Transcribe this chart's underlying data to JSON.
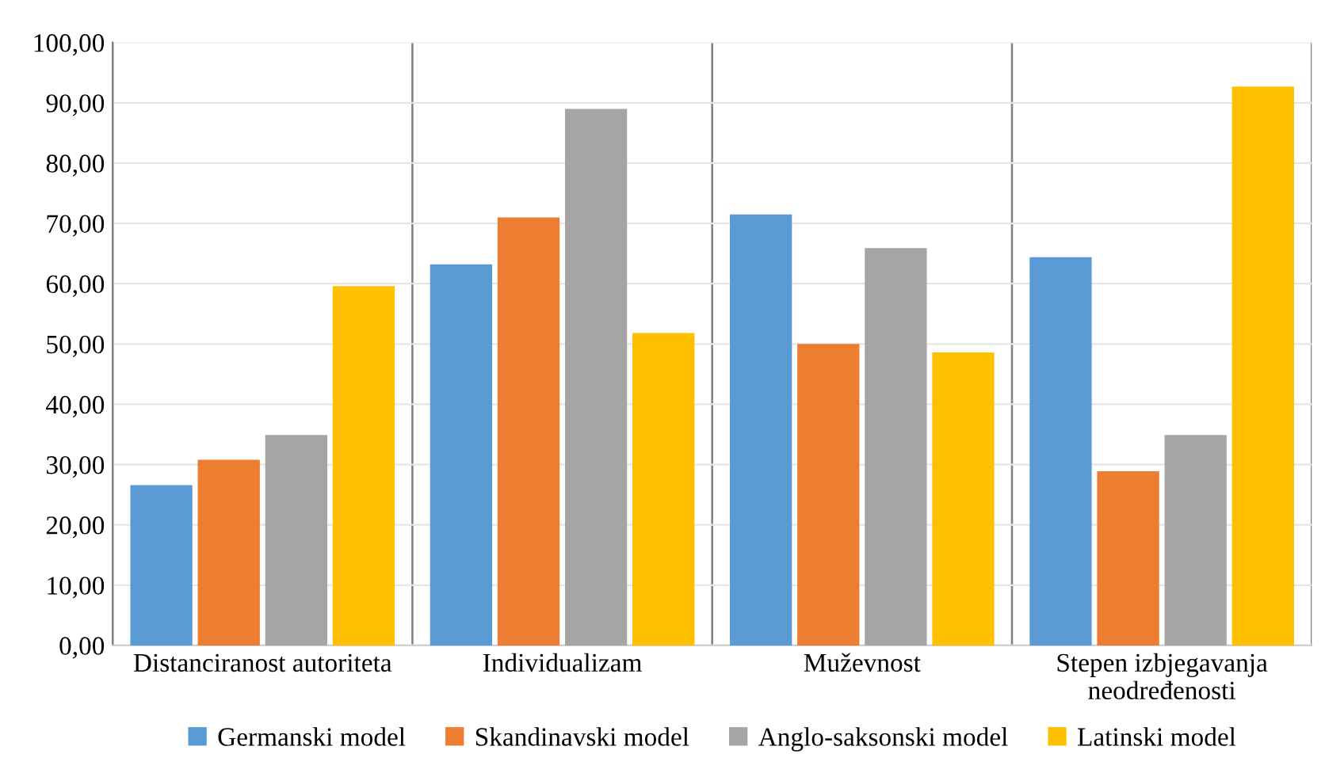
{
  "chart_data": {
    "type": "bar",
    "categories": [
      "Distanciranost autoriteta",
      "Individualizam",
      "Muževnost",
      "Stepen izbjegavanja\nneodređenosti"
    ],
    "series": [
      {
        "name": "Germanski model",
        "color": "#5b9bd5",
        "values": [
          26.6,
          63.2,
          71.5,
          64.4
        ]
      },
      {
        "name": "Skandinavski model",
        "color": "#ed7d31",
        "values": [
          30.8,
          71.0,
          50.0,
          28.9
        ]
      },
      {
        "name": "Anglo-saksonski model",
        "color": "#a5a5a5",
        "values": [
          34.9,
          89.0,
          65.9,
          34.9
        ]
      },
      {
        "name": "Latinski model",
        "color": "#ffc000",
        "values": [
          59.6,
          51.8,
          48.6,
          92.7
        ]
      }
    ],
    "ylim": [
      0,
      100
    ],
    "yticks": [
      {
        "value": 0,
        "label": "0,00"
      },
      {
        "value": 10,
        "label": "10,00"
      },
      {
        "value": 20,
        "label": "20,00"
      },
      {
        "value": 30,
        "label": "30,00"
      },
      {
        "value": 40,
        "label": "40,00"
      },
      {
        "value": 50,
        "label": "50,00"
      },
      {
        "value": 60,
        "label": "60,00"
      },
      {
        "value": 70,
        "label": "70,00"
      },
      {
        "value": 80,
        "label": "80,00"
      },
      {
        "value": 90,
        "label": "90,00"
      },
      {
        "value": 100,
        "label": "100,00"
      }
    ],
    "grid": true,
    "legend": "bottom"
  }
}
